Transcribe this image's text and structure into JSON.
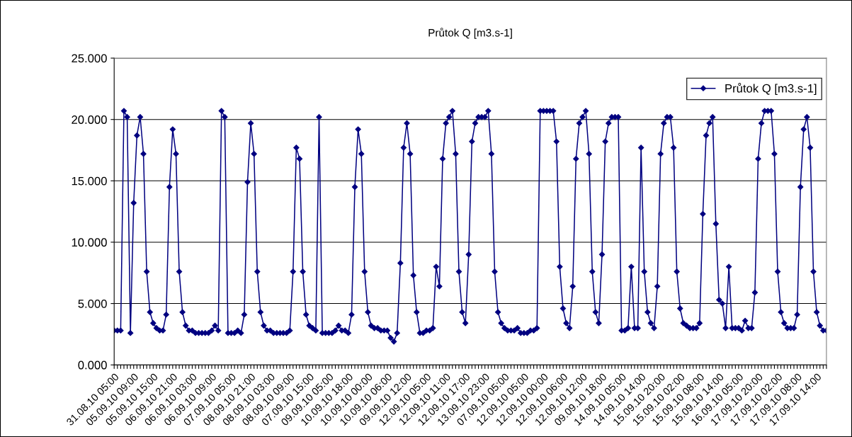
{
  "chart_data": {
    "type": "line",
    "title": "Průtok Q [m3.s-1]",
    "categories": [
      "31.08.10 05:00",
      null,
      null,
      null,
      null,
      null,
      "05.09.10 09:00",
      null,
      null,
      null,
      null,
      null,
      "05.09.10 15:00",
      null,
      null,
      null,
      null,
      null,
      "06.09.10 21:00",
      null,
      null,
      null,
      null,
      null,
      "06.09.10 03:00",
      null,
      null,
      null,
      null,
      null,
      "06.09.10 09:00",
      null,
      null,
      null,
      null,
      null,
      "07.09.10 05:00",
      null,
      null,
      null,
      null,
      null,
      "08.09.10 21:00",
      null,
      null,
      null,
      null,
      null,
      "08.09.10 03:00",
      null,
      null,
      null,
      null,
      null,
      "08.09.10 09:00",
      null,
      null,
      null,
      null,
      null,
      "07.09.10 15:00",
      null,
      null,
      null,
      null,
      null,
      "09.09.10 05:00",
      null,
      null,
      null,
      null,
      null,
      "10.09.10 18:00",
      null,
      null,
      null,
      null,
      null,
      "10.09.10 00:00",
      null,
      null,
      null,
      null,
      null,
      "10.09.10 06:00",
      null,
      null,
      null,
      null,
      null,
      "09.09.10 12:00",
      null,
      null,
      null,
      null,
      null,
      "12.09.10 05:00",
      null,
      null,
      null,
      null,
      null,
      "12.09.10 11:00",
      null,
      null,
      null,
      null,
      null,
      "12.09.10 17:00",
      null,
      null,
      null,
      null,
      null,
      "13.09.10 23:00",
      null,
      null,
      null,
      null,
      null,
      "07.09.10 05:00",
      null,
      null,
      null,
      null,
      null,
      "12.09.10 05:00",
      null,
      null,
      null,
      null,
      null,
      "12.09.10 00:00",
      null,
      null,
      null,
      null,
      null,
      "12.09.10 06:00",
      null,
      null,
      null,
      null,
      null,
      "12.09.10 12:00",
      null,
      null,
      null,
      null,
      null,
      "09.09.10 18:00",
      null,
      null,
      null,
      null,
      null,
      "14.09.10 05:00",
      null,
      null,
      null,
      null,
      null,
      "14.09.10 14:00",
      null,
      null,
      null,
      null,
      null,
      "15.09.10 20:00",
      null,
      null,
      null,
      null,
      null,
      "15.09.10 02:00",
      null,
      null,
      null,
      null,
      null,
      "15.09.10 08:00",
      null,
      null,
      null,
      null,
      null,
      "15.09.10 14:00",
      null,
      null,
      null,
      null,
      null,
      "16.09.10 05:00",
      null,
      null,
      null,
      null,
      null,
      "17.09.10 20:00",
      null,
      null,
      null,
      null,
      null,
      "17.09.10 02:00",
      null,
      null,
      null,
      null,
      null,
      "17.09.10 08:00",
      null,
      null,
      null,
      null,
      null,
      "17.09.10 14:00",
      null,
      null,
      null
    ],
    "series": [
      {
        "name": "Průtok Q [m3.s-1]",
        "color": "#000080",
        "values": [
          2.8,
          2.8,
          2.8,
          20.7,
          20.2,
          2.6,
          13.2,
          18.7,
          20.2,
          17.2,
          7.6,
          4.3,
          3.4,
          3.0,
          2.8,
          2.8,
          4.1,
          14.5,
          19.2,
          17.2,
          7.6,
          4.3,
          3.2,
          2.8,
          2.8,
          2.6,
          2.6,
          2.6,
          2.6,
          2.6,
          2.8,
          3.2,
          2.8,
          20.7,
          20.2,
          2.6,
          2.6,
          2.6,
          2.8,
          2.6,
          4.1,
          14.9,
          19.7,
          17.2,
          7.6,
          4.3,
          3.2,
          2.8,
          2.8,
          2.6,
          2.6,
          2.6,
          2.6,
          2.6,
          2.8,
          7.6,
          17.7,
          16.8,
          7.6,
          4.1,
          3.2,
          3.0,
          2.8,
          20.2,
          2.6,
          2.6,
          2.6,
          2.6,
          2.8,
          3.2,
          2.8,
          2.8,
          2.6,
          4.1,
          14.5,
          19.2,
          17.2,
          7.6,
          4.3,
          3.2,
          3.0,
          3.0,
          2.8,
          2.8,
          2.8,
          2.2,
          1.9,
          2.6,
          8.3,
          17.7,
          19.7,
          17.2,
          7.3,
          4.3,
          2.6,
          2.6,
          2.8,
          2.8,
          3.0,
          8.0,
          6.4,
          16.8,
          19.7,
          20.2,
          20.7,
          17.2,
          7.6,
          4.3,
          3.4,
          9.0,
          18.2,
          19.7,
          20.2,
          20.2,
          20.2,
          20.7,
          17.2,
          7.6,
          4.3,
          3.4,
          3.0,
          2.8,
          2.8,
          2.8,
          3.0,
          2.6,
          2.6,
          2.6,
          2.8,
          2.8,
          3.0,
          20.7,
          20.7,
          20.7,
          20.7,
          20.7,
          18.2,
          8.0,
          4.6,
          3.4,
          3.0,
          6.4,
          16.8,
          19.7,
          20.2,
          20.7,
          17.2,
          7.6,
          4.3,
          3.4,
          9.0,
          18.2,
          19.7,
          20.2,
          20.2,
          20.2,
          2.8,
          2.8,
          3.0,
          8.0,
          3.0,
          3.0,
          17.7,
          7.6,
          4.3,
          3.4,
          3.0,
          6.4,
          17.2,
          19.7,
          20.2,
          20.2,
          17.7,
          7.6,
          4.6,
          3.4,
          3.2,
          3.0,
          3.0,
          3.0,
          3.4,
          12.3,
          18.7,
          19.7,
          20.2,
          11.5,
          5.3,
          5.0,
          3.0,
          8.0,
          3.0,
          3.0,
          3.0,
          2.8,
          3.6,
          3.0,
          3.0,
          5.9,
          16.8,
          19.7,
          20.7,
          20.7,
          20.7,
          17.2,
          7.6,
          4.3,
          3.4,
          3.0,
          3.0,
          3.0,
          4.1,
          14.5,
          19.2,
          20.2,
          17.7,
          7.6,
          4.3,
          3.2,
          2.8,
          2.8
        ]
      }
    ],
    "ylim": [
      0,
      25
    ],
    "yticks": [
      {
        "value": 0,
        "label": "0.000"
      },
      {
        "value": 5,
        "label": "5.000"
      },
      {
        "value": 10,
        "label": "10.000"
      },
      {
        "value": 15,
        "label": "15.000"
      },
      {
        "value": 20,
        "label": "20.000"
      },
      {
        "value": 25,
        "label": "25.000"
      }
    ],
    "grid": "y",
    "legend": "top right",
    "marker": "diamond",
    "line_style": "solid"
  }
}
